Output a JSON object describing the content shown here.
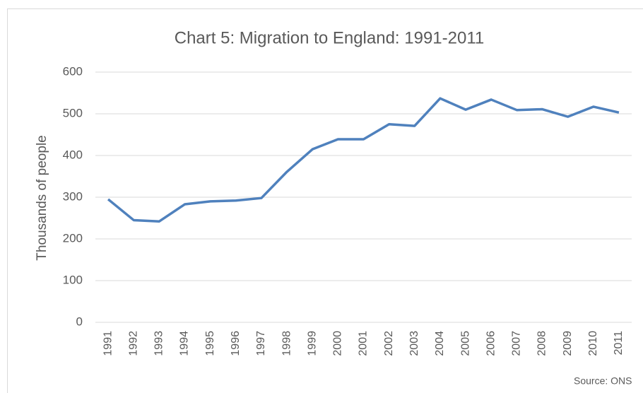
{
  "chart_data": {
    "type": "line",
    "title": "Chart 5: Migration to England: 1991-2011",
    "y_label": "Thousands of people",
    "source": "Source: ONS",
    "categories": [
      "1991",
      "1992",
      "1993",
      "1994",
      "1995",
      "1996",
      "1997",
      "1998",
      "1999",
      "2000",
      "2001",
      "2002",
      "2003",
      "2004",
      "2005",
      "2006",
      "2007",
      "2008",
      "2009",
      "2010",
      "2011"
    ],
    "series": [
      {
        "name": "Migration to England",
        "color": "#4f81bd",
        "values": [
          295,
          245,
          242,
          283,
          290,
          292,
          298,
          361,
          415,
          439,
          439,
          475,
          471,
          537,
          510,
          534,
          509,
          511,
          493,
          517,
          503
        ]
      }
    ],
    "ylim": [
      0,
      600
    ],
    "yticks": [
      0,
      100,
      200,
      300,
      400,
      500,
      600
    ],
    "grid": true
  }
}
